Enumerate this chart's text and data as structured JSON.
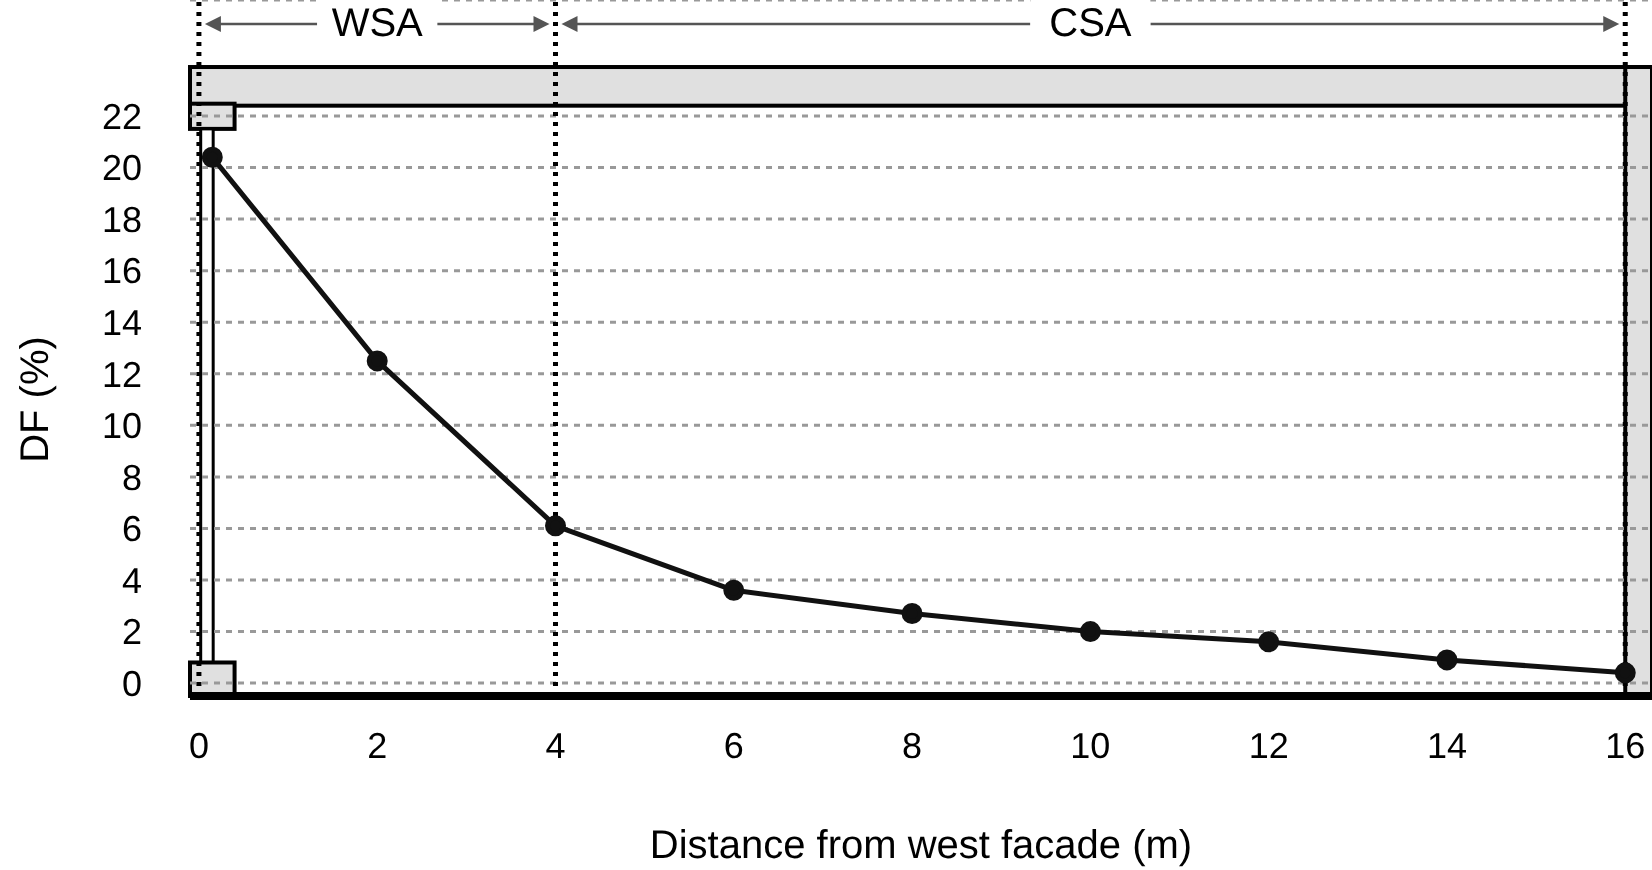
{
  "chart_data": {
    "type": "line",
    "xlabel": "Distance from west facade (m)",
    "ylabel": "DF (%)",
    "x": [
      0.15,
      2,
      4,
      6,
      8,
      10,
      12,
      14,
      16
    ],
    "series": [
      {
        "color": "#111111",
        "values": [
          20.4,
          12.5,
          6.1,
          3.6,
          2.7,
          2.0,
          1.6,
          0.9,
          0.4
        ]
      }
    ],
    "xlim": [
      -0.1,
      16.3
    ],
    "ylim": [
      -0.5,
      26.5
    ],
    "xticks": [
      0,
      2,
      4,
      6,
      8,
      10,
      12,
      14,
      16
    ],
    "yticks": [
      0,
      2,
      4,
      6,
      8,
      10,
      12,
      14,
      16,
      18,
      20,
      22
    ],
    "grid": "y",
    "marker": "circle",
    "line_style": "solid",
    "ref_lines": [
      {
        "axis": "x",
        "value": 0,
        "color": "#000000",
        "line_style": "dotted"
      },
      {
        "axis": "x",
        "value": 4,
        "color": "#000000",
        "line_style": "dotted"
      },
      {
        "axis": "x",
        "value": 16,
        "color": "#000000",
        "line_style": "dotted"
      }
    ],
    "annotations": [
      "WSA",
      "CSA"
    ]
  }
}
